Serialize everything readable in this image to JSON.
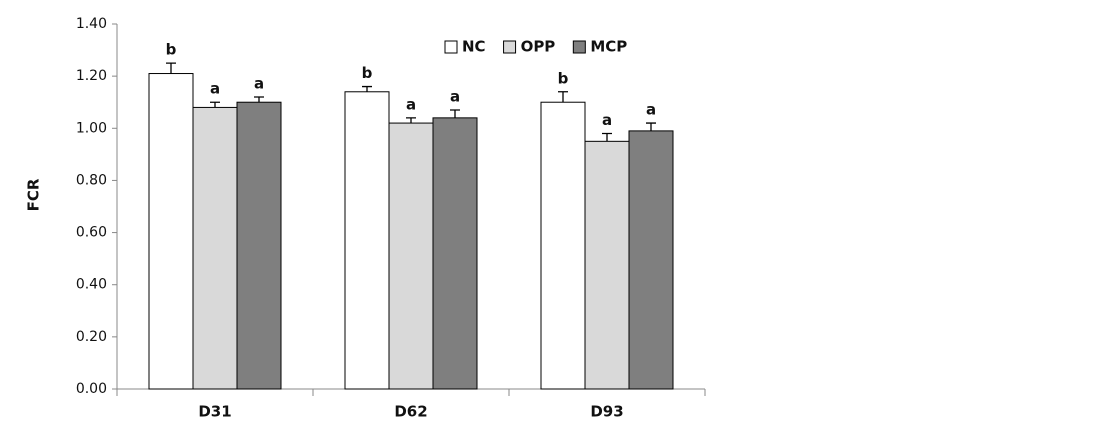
{
  "chart_data": {
    "type": "bar",
    "y_label": "FCR",
    "categories": [
      "D31",
      "D62",
      "D93"
    ],
    "series": [
      {
        "name": "NC",
        "color": "#ffffff",
        "values": [
          1.21,
          1.14,
          1.1
        ],
        "errors": [
          0.04,
          0.02,
          0.04
        ],
        "letters": [
          "b",
          "b",
          "b"
        ]
      },
      {
        "name": "OPP",
        "color": "#d9d9d9",
        "values": [
          1.08,
          1.02,
          0.95
        ],
        "errors": [
          0.02,
          0.02,
          0.03
        ],
        "letters": [
          "a",
          "a",
          "a"
        ]
      },
      {
        "name": "MCP",
        "color": "#7f7f7f",
        "values": [
          1.1,
          1.04,
          0.99
        ],
        "errors": [
          0.02,
          0.03,
          0.03
        ],
        "letters": [
          "a",
          "a",
          "a"
        ]
      }
    ],
    "ylim": [
      0,
      1.4
    ],
    "yticks": [
      {
        "value": 0,
        "label": "0.00"
      },
      {
        "value": 0.2,
        "label": "0.20"
      },
      {
        "value": 0.4,
        "label": "0.40"
      },
      {
        "value": 0.6,
        "label": "0.60"
      },
      {
        "value": 0.8,
        "label": "0.80"
      },
      {
        "value": 1.0,
        "label": "1.00"
      },
      {
        "value": 1.2,
        "label": "1.20"
      },
      {
        "value": 1.4,
        "label": "1.40"
      }
    ],
    "grid": false,
    "legend": "top-right"
  }
}
